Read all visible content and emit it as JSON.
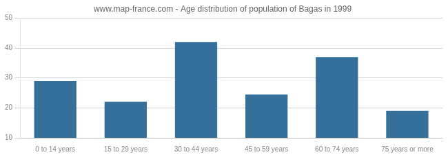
{
  "chart_data": {
    "type": "bar",
    "title": "www.map-france.com - Age distribution of population of Bagas in 1999",
    "categories": [
      "0 to 14 years",
      "15 to 29 years",
      "30 to 44 years",
      "45 to 59 years",
      "60 to 74 years",
      "75 years or more"
    ],
    "values": [
      29,
      22,
      42,
      24.5,
      37,
      19
    ],
    "color": "#35709a",
    "ylim": [
      10,
      50
    ],
    "yticks": [
      10,
      20,
      30,
      40,
      50
    ],
    "grid": true
  }
}
